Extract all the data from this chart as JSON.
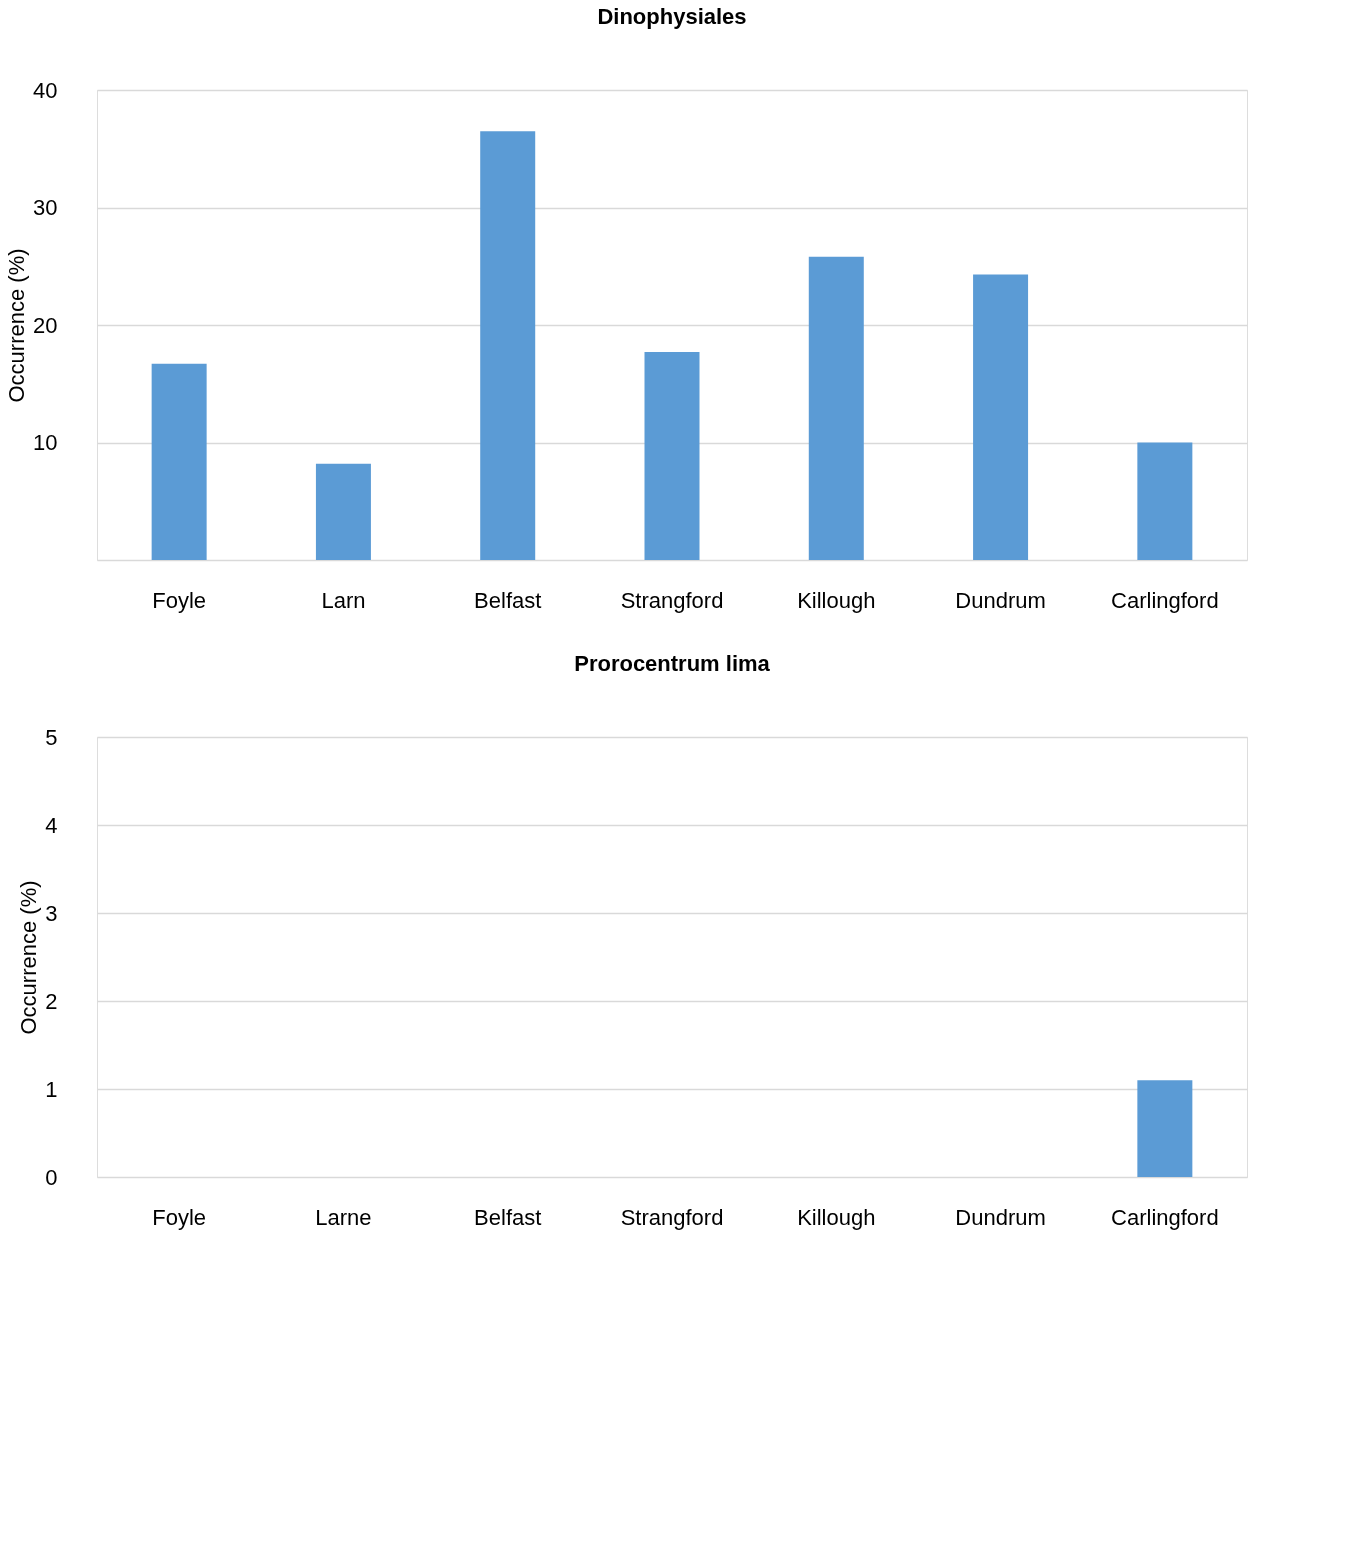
{
  "chart_data": [
    {
      "type": "bar",
      "title": "Dinophysiales",
      "ylabel": "Occurrence (%)",
      "categories": [
        "Foyle",
        "Larn",
        "Belfast",
        "Strangford",
        "Killough",
        "Dundrum",
        "Carlingford"
      ],
      "values": [
        16.7,
        8.2,
        36.5,
        17.7,
        25.8,
        24.3,
        10.0
      ],
      "color": "#5b9bd5",
      "ylim": [
        0,
        40
      ],
      "yticks": [
        {
          "value": 0,
          "label": null
        },
        10,
        20,
        30,
        40
      ],
      "grid": "y"
    },
    {
      "type": "bar",
      "title": "Prorocentrum lima",
      "ylabel": "Occurrence (%)",
      "categories": [
        "Foyle",
        "Larne",
        "Belfast",
        "Strangford",
        "Killough",
        "Dundrum",
        "Carlingford"
      ],
      "values": [
        0,
        0,
        0,
        0,
        0,
        0,
        1.1
      ],
      "color": "#5b9bd5",
      "ylim": [
        0,
        5
      ],
      "yticks": [
        0,
        1,
        2,
        3,
        4,
        5
      ],
      "grid": "y"
    }
  ]
}
